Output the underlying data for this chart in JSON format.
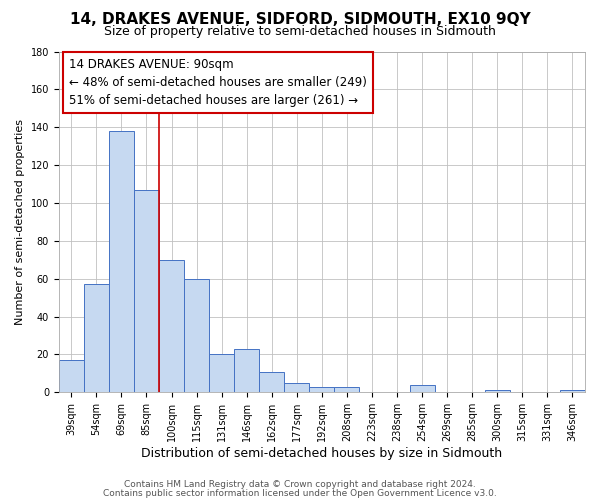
{
  "title": "14, DRAKES AVENUE, SIDFORD, SIDMOUTH, EX10 9QY",
  "subtitle": "Size of property relative to semi-detached houses in Sidmouth",
  "xlabel": "Distribution of semi-detached houses by size in Sidmouth",
  "ylabel": "Number of semi-detached properties",
  "footer_line1": "Contains HM Land Registry data © Crown copyright and database right 2024.",
  "footer_line2": "Contains public sector information licensed under the Open Government Licence v3.0.",
  "annotation_title": "14 DRAKES AVENUE: 90sqm",
  "annotation_line1": "← 48% of semi-detached houses are smaller (249)",
  "annotation_line2": "51% of semi-detached houses are larger (261) →",
  "bar_labels": [
    "39sqm",
    "54sqm",
    "69sqm",
    "85sqm",
    "100sqm",
    "115sqm",
    "131sqm",
    "146sqm",
    "162sqm",
    "177sqm",
    "192sqm",
    "208sqm",
    "223sqm",
    "238sqm",
    "254sqm",
    "269sqm",
    "285sqm",
    "300sqm",
    "315sqm",
    "331sqm",
    "346sqm"
  ],
  "bar_values": [
    17,
    57,
    138,
    107,
    70,
    60,
    20,
    23,
    11,
    5,
    3,
    3,
    0,
    0,
    4,
    0,
    0,
    1,
    0,
    0,
    1
  ],
  "bar_color": "#c6d9f1",
  "bar_edge_color": "#4472c4",
  "marker_bar_index": 3,
  "marker_line_color": "#cc0000",
  "ylim": [
    0,
    180
  ],
  "yticks": [
    0,
    20,
    40,
    60,
    80,
    100,
    120,
    140,
    160,
    180
  ],
  "background_color": "#ffffff",
  "grid_color": "#c0c0c0",
  "title_fontsize": 11,
  "subtitle_fontsize": 9,
  "xlabel_fontsize": 9,
  "ylabel_fontsize": 8,
  "tick_fontsize": 7,
  "footer_fontsize": 6.5,
  "annotation_fontsize": 8.5
}
